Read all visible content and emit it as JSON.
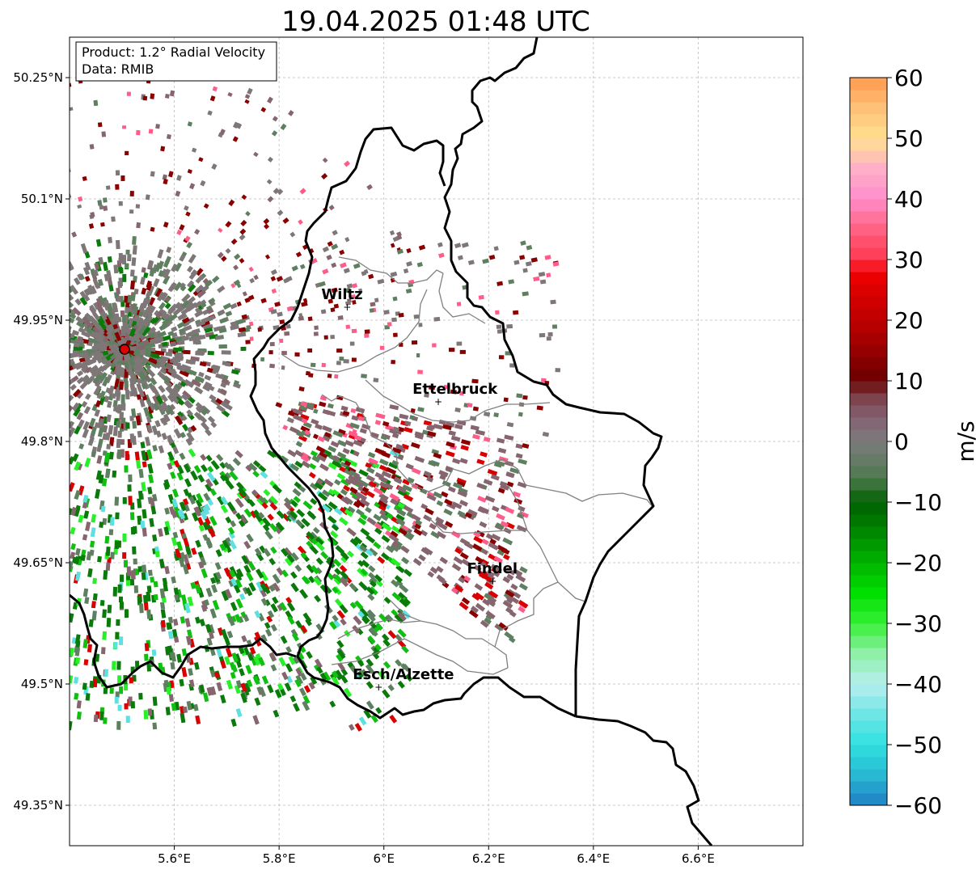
{
  "title": "19.04.2025 01:48 UTC",
  "info_box": {
    "product": "Product: 1.2° Radial Velocity",
    "data_source": "Data: RMIB"
  },
  "map": {
    "lon_range": [
      5.4,
      6.8
    ],
    "lat_range": [
      49.3,
      50.3
    ],
    "lon_ticks": [
      {
        "value": 5.6,
        "label": "5.6°E"
      },
      {
        "value": 5.8,
        "label": "5.8°E"
      },
      {
        "value": 6.0,
        "label": "6°E"
      },
      {
        "value": 6.2,
        "label": "6.2°E"
      },
      {
        "value": 6.4,
        "label": "6.4°E"
      },
      {
        "value": 6.6,
        "label": "6.6°E"
      }
    ],
    "lat_ticks": [
      {
        "value": 50.25,
        "label": "50.25°N"
      },
      {
        "value": 50.1,
        "label": "50.1°N"
      },
      {
        "value": 49.95,
        "label": "49.95°N"
      },
      {
        "value": 49.8,
        "label": "49.8°N"
      },
      {
        "value": 49.65,
        "label": "49.65°N"
      },
      {
        "value": 49.5,
        "label": "49.5°N"
      },
      {
        "value": 49.35,
        "label": "49.35°N"
      }
    ],
    "radar_site": {
      "name": "radar-site",
      "lon": 5.505,
      "lat": 49.914,
      "color": "#e00000"
    },
    "cities": [
      {
        "name": "Wiltz",
        "lon": 5.93,
        "lat": 49.966
      },
      {
        "name": "Ettelbruck",
        "lon": 6.104,
        "lat": 49.849
      },
      {
        "name": "Findel",
        "lon": 6.208,
        "lat": 49.627
      },
      {
        "name": "Esch/Alzette",
        "lon": 5.99,
        "lat": 49.496
      }
    ]
  },
  "colorbar": {
    "label": "m/s",
    "min": -60,
    "max": 60,
    "ticks": [
      {
        "value": 60,
        "label": "60"
      },
      {
        "value": 50,
        "label": "50"
      },
      {
        "value": 40,
        "label": "40"
      },
      {
        "value": 30,
        "label": "30"
      },
      {
        "value": 20,
        "label": "20"
      },
      {
        "value": 10,
        "label": "10"
      },
      {
        "value": 0,
        "label": "0"
      },
      {
        "value": -10,
        "label": "−10"
      },
      {
        "value": -20,
        "label": "−20"
      },
      {
        "value": -30,
        "label": "−30"
      },
      {
        "value": -40,
        "label": "−40"
      },
      {
        "value": -50,
        "label": "−50"
      },
      {
        "value": -60,
        "label": "−60"
      }
    ],
    "stops": [
      {
        "v": -60,
        "c": "#1f7fc4"
      },
      {
        "v": -55,
        "c": "#28b8d2"
      },
      {
        "v": -50,
        "c": "#2fe0e0"
      },
      {
        "v": -45,
        "c": "#6fe6e6"
      },
      {
        "v": -40,
        "c": "#b8eef0"
      },
      {
        "v": -35,
        "c": "#8ff0a8"
      },
      {
        "v": -30,
        "c": "#37f037"
      },
      {
        "v": -25,
        "c": "#00e000"
      },
      {
        "v": -20,
        "c": "#00b400"
      },
      {
        "v": -15,
        "c": "#008800"
      },
      {
        "v": -10,
        "c": "#006000"
      },
      {
        "v": -6,
        "c": "#4f7a4f"
      },
      {
        "v": 0,
        "c": "#7b7b7b"
      },
      {
        "v": 4,
        "c": "#846272"
      },
      {
        "v": 8,
        "c": "#7a3a40"
      },
      {
        "v": 10,
        "c": "#6a0000"
      },
      {
        "v": 18,
        "c": "#b00000"
      },
      {
        "v": 28,
        "c": "#f00000"
      },
      {
        "v": 30,
        "c": "#ff3850"
      },
      {
        "v": 36,
        "c": "#ff6a8c"
      },
      {
        "v": 40,
        "c": "#ff8ccc"
      },
      {
        "v": 45,
        "c": "#ffb0c8"
      },
      {
        "v": 50,
        "c": "#ffe090"
      },
      {
        "v": 55,
        "c": "#ffc078"
      },
      {
        "v": 60,
        "c": "#ff9a50"
      }
    ]
  },
  "echo_colors": {
    "zero_grey": "#7f7777",
    "green_grey": "#5e8060",
    "mauve": "#86656f",
    "dark_red": "#8a0000",
    "red": "#d80000",
    "pink": "#ff5c8a",
    "dark_green": "#0a7a0a",
    "green": "#10c010",
    "bright_green": "#28f028",
    "cyan": "#5fe0e0"
  }
}
